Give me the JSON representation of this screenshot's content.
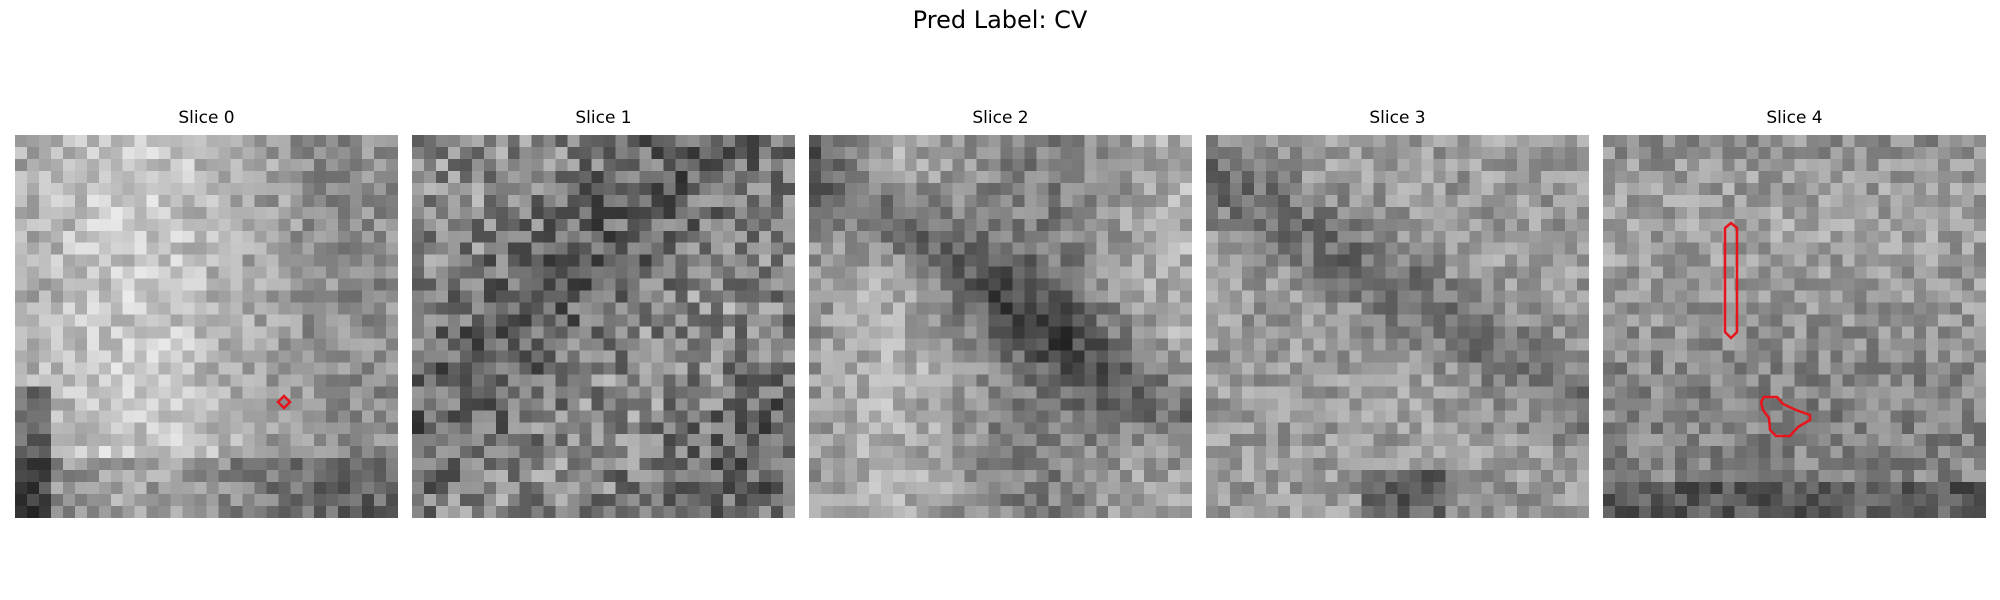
{
  "figure": {
    "title": "Pred Label: CV",
    "panels": [
      {
        "title": "Slice 0",
        "seed": 11,
        "contours": 1
      },
      {
        "title": "Slice 1",
        "seed": 23,
        "contours": 0
      },
      {
        "title": "Slice 2",
        "seed": 37,
        "contours": 0
      },
      {
        "title": "Slice 3",
        "seed": 51,
        "contours": 0
      },
      {
        "title": "Slice 4",
        "seed": 67,
        "contours": 2
      }
    ],
    "contour_color": "#e8141b",
    "grid_size": 32
  }
}
